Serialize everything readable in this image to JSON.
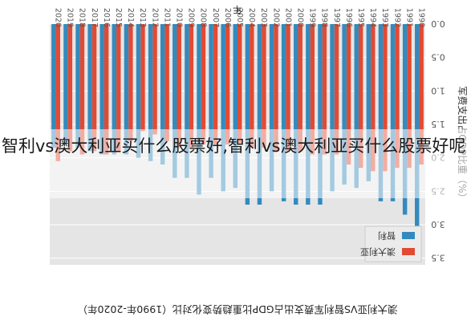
{
  "chart_data": {
    "type": "bar",
    "title": "澳大利亚VS智利军费支出占GDP比重趋势变化对比（1990年-2020年）",
    "xlabel": "年",
    "ylabel": "军费支出占GDP比重（%）",
    "ylim": [
      0,
      3.6
    ],
    "yticks": [
      "0.0",
      "0.5",
      "1.0",
      "1.5",
      "2.0",
      "2.5",
      "3.0",
      "3.5"
    ],
    "grid": true,
    "legend_position": "top-left",
    "categories": [
      "1990",
      "1991",
      "1992",
      "1993",
      "1994",
      "1995",
      "1996",
      "1997",
      "1998",
      "1999",
      "2000",
      "2001",
      "2002",
      "2003",
      "2004",
      "2005",
      "2006",
      "2007",
      "2008",
      "2009",
      "2010",
      "2011",
      "2012",
      "2013",
      "2014",
      "2015",
      "2016",
      "2017",
      "2018",
      "2019",
      "2020"
    ],
    "series": [
      {
        "name": "澳大利亚",
        "color": "#e24a33",
        "values": [
          2.1,
          2.15,
          2.15,
          2.2,
          2.2,
          2.15,
          2.1,
          1.95,
          1.95,
          1.95,
          1.9,
          1.9,
          1.9,
          1.85,
          1.85,
          1.8,
          1.8,
          1.8,
          1.8,
          1.85,
          1.85,
          1.75,
          1.65,
          1.6,
          1.75,
          1.9,
          1.95,
          1.9,
          1.95,
          1.9,
          2.05
        ]
      },
      {
        "name": "智利",
        "color": "#348abd",
        "values": [
          3.4,
          2.85,
          2.65,
          2.65,
          2.35,
          2.45,
          2.4,
          2.5,
          2.7,
          2.7,
          2.7,
          2.65,
          2.5,
          2.7,
          2.7,
          2.45,
          2.5,
          2.3,
          2.55,
          2.3,
          2.3,
          2.1,
          2.05,
          2.0,
          1.95,
          1.95,
          1.95,
          1.9,
          1.85,
          1.8,
          1.85
        ]
      }
    ]
  },
  "overlay": {
    "text": "智利vs澳大利亚买什么股票好,智利vs澳大利亚买什么股票好呢"
  }
}
